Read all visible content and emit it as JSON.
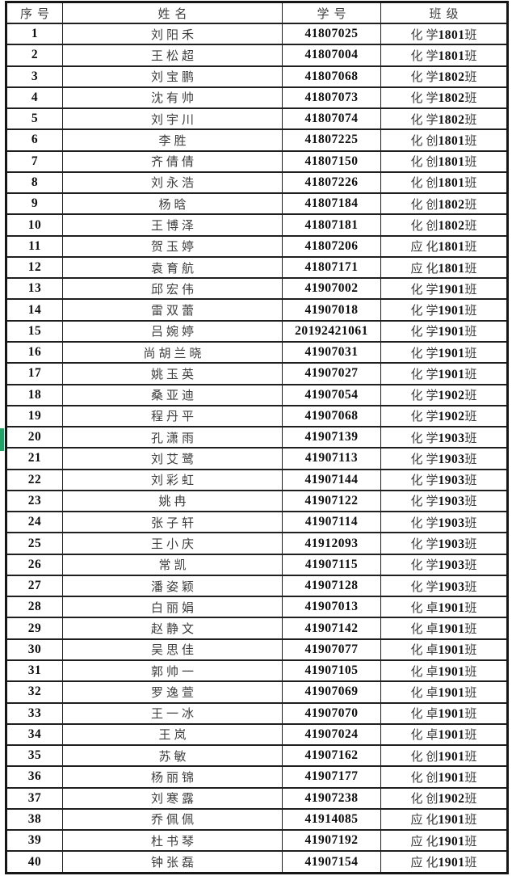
{
  "page": {
    "background": "#ffffff",
    "border_color": "#1f1f1f",
    "chinese_text_color": "#3e3e3e",
    "number_text_color": "#0f0f0f",
    "marker_color": "#21a366"
  },
  "marker": {
    "at_row_no": "20"
  },
  "table": {
    "columns": [
      {
        "key": "no",
        "label": "序号"
      },
      {
        "key": "name",
        "label": "姓名"
      },
      {
        "key": "id",
        "label": "学号"
      },
      {
        "key": "cls",
        "label": "班级"
      }
    ],
    "rows": [
      {
        "no": "1",
        "name": "刘阳禾",
        "id": "41807025",
        "cls": "化学1801班"
      },
      {
        "no": "2",
        "name": "王松超",
        "id": "41807004",
        "cls": "化学1801班"
      },
      {
        "no": "3",
        "name": "刘宝鹏",
        "id": "41807068",
        "cls": "化学1802班"
      },
      {
        "no": "4",
        "name": "沈有帅",
        "id": "41807073",
        "cls": "化学1802班"
      },
      {
        "no": "5",
        "name": "刘宇川",
        "id": "41807074",
        "cls": "化学1802班"
      },
      {
        "no": "6",
        "name": "李胜",
        "id": "41807225",
        "cls": "化创1801班"
      },
      {
        "no": "7",
        "name": "齐倩倩",
        "id": "41807150",
        "cls": "化创1801班"
      },
      {
        "no": "8",
        "name": "刘永浩",
        "id": "41807226",
        "cls": "化创1801班"
      },
      {
        "no": "9",
        "name": "杨晗",
        "id": "41807184",
        "cls": "化创1802班"
      },
      {
        "no": "10",
        "name": "王博泽",
        "id": "41807181",
        "cls": "化创1802班"
      },
      {
        "no": "11",
        "name": "贺玉婷",
        "id": "41807206",
        "cls": "应化1801班"
      },
      {
        "no": "12",
        "name": "袁育航",
        "id": "41807171",
        "cls": "应化1801班"
      },
      {
        "no": "13",
        "name": "邱宏伟",
        "id": "41907002",
        "cls": "化学1901班"
      },
      {
        "no": "14",
        "name": "雷双蕾",
        "id": "41907018",
        "cls": "化学1901班"
      },
      {
        "no": "15",
        "name": "吕婉婷",
        "id": "20192421061",
        "cls": "化学1901班"
      },
      {
        "no": "16",
        "name": "尚胡兰晓",
        "id": "41907031",
        "cls": "化学1901班"
      },
      {
        "no": "17",
        "name": "姚玉英",
        "id": "41907027",
        "cls": "化学1901班"
      },
      {
        "no": "18",
        "name": "桑亚迪",
        "id": "41907054",
        "cls": "化学1902班"
      },
      {
        "no": "19",
        "name": "程丹平",
        "id": "41907068",
        "cls": "化学1902班"
      },
      {
        "no": "20",
        "name": "孔潇雨",
        "id": "41907139",
        "cls": "化学1903班"
      },
      {
        "no": "21",
        "name": "刘艾鹭",
        "id": "41907113",
        "cls": "化学1903班"
      },
      {
        "no": "22",
        "name": "刘彩虹",
        "id": "41907144",
        "cls": "化学1903班"
      },
      {
        "no": "23",
        "name": "姚冉",
        "id": "41907122",
        "cls": "化学1903班"
      },
      {
        "no": "24",
        "name": "张子轩",
        "id": "41907114",
        "cls": "化学1903班"
      },
      {
        "no": "25",
        "name": "王小庆",
        "id": "41912093",
        "cls": "化学1903班"
      },
      {
        "no": "26",
        "name": "常凯",
        "id": "41907115",
        "cls": "化学1903班"
      },
      {
        "no": "27",
        "name": "潘姿颖",
        "id": "41907128",
        "cls": "化学1903班"
      },
      {
        "no": "28",
        "name": "白丽娟",
        "id": "41907013",
        "cls": "化卓1901班"
      },
      {
        "no": "29",
        "name": "赵静文",
        "id": "41907142",
        "cls": "化卓1901班"
      },
      {
        "no": "30",
        "name": "吴思佳",
        "id": "41907077",
        "cls": "化卓1901班"
      },
      {
        "no": "31",
        "name": "郭帅一",
        "id": "41907105",
        "cls": "化卓1901班"
      },
      {
        "no": "32",
        "name": "罗逸萱",
        "id": "41907069",
        "cls": "化卓1901班"
      },
      {
        "no": "33",
        "name": "王一冰",
        "id": "41907070",
        "cls": "化卓1901班"
      },
      {
        "no": "34",
        "name": "王岚",
        "id": "41907024",
        "cls": "化卓1901班"
      },
      {
        "no": "35",
        "name": "苏敏",
        "id": "41907162",
        "cls": "化创1901班"
      },
      {
        "no": "36",
        "name": "杨丽锦",
        "id": "41907177",
        "cls": "化创1901班"
      },
      {
        "no": "37",
        "name": "刘寒露",
        "id": "41907238",
        "cls": "化创1902班"
      },
      {
        "no": "38",
        "name": "乔佩佩",
        "id": "41914085",
        "cls": "应化1901班"
      },
      {
        "no": "39",
        "name": "杜书琴",
        "id": "41907192",
        "cls": "应化1901班"
      },
      {
        "no": "40",
        "name": "钟张磊",
        "id": "41907154",
        "cls": "应化1901班"
      }
    ]
  }
}
